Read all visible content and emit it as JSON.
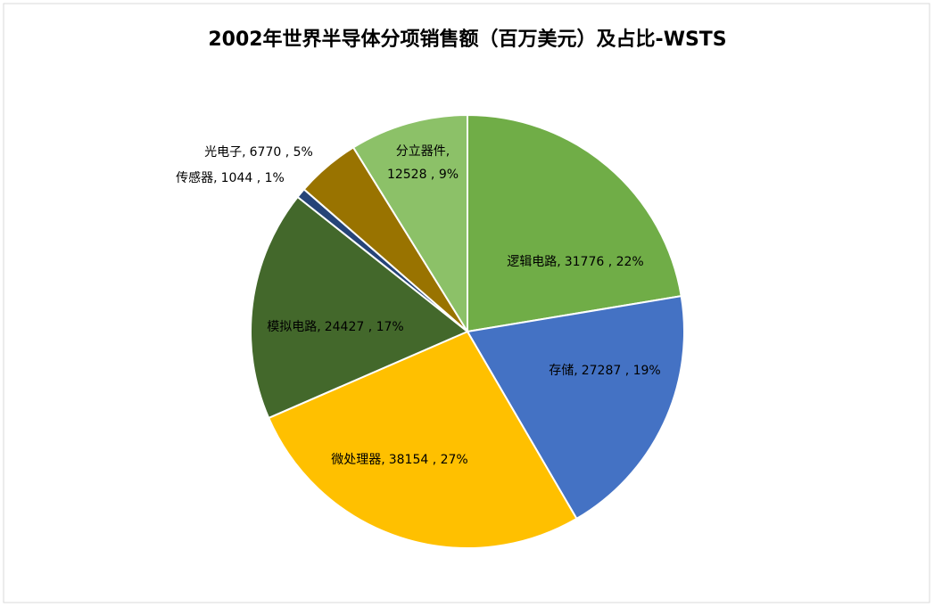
{
  "chart_data": {
    "type": "pie",
    "title": "2002年世界半导体分项销售额（百万美元）及占比-WSTS",
    "categories": [
      "逻辑电路,",
      "存储,",
      "微处理器,",
      "模拟电路,",
      "传感器,",
      "光电子,",
      "分立器件,"
    ],
    "values": [
      31776,
      27287,
      38154,
      24427,
      1044,
      6770,
      12528
    ],
    "value_labels": [
      "31776 , 22%",
      "27287 , 19%",
      "38154 , 27%",
      "24427 , 17%",
      "1044 , 1%",
      "6770 , 5%",
      "12528 , 9%"
    ],
    "colors": [
      "#70ad47",
      "#4472c4",
      "#ffc000",
      "#43682b",
      "#264478",
      "#997300",
      "#8cc168"
    ]
  }
}
